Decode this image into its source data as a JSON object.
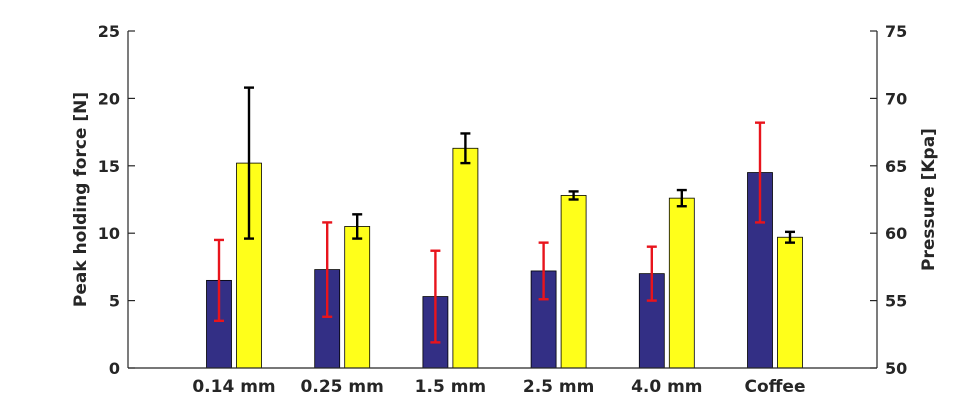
{
  "chart_data": {
    "type": "bar",
    "categories": [
      "0.14 mm",
      "0.25 mm",
      "1.5 mm",
      "2.5 mm",
      "4.0 mm",
      "Coffee"
    ],
    "series": [
      {
        "axis": "left",
        "color": "#332f85",
        "error_color": "#e8141c",
        "values": [
          6.5,
          7.3,
          5.3,
          7.2,
          7.0,
          14.5
        ],
        "errors": [
          3.0,
          3.5,
          3.4,
          2.1,
          2.0,
          3.7
        ]
      },
      {
        "axis": "right",
        "color": "#ffff1a",
        "error_color": "#000000",
        "values": [
          65.2,
          60.5,
          66.3,
          62.8,
          62.6,
          59.7
        ],
        "errors": [
          5.6,
          0.9,
          1.1,
          0.3,
          0.6,
          0.4
        ]
      }
    ],
    "ylabel": "Peak holding force [N]",
    "ylabel_right": "Pressure [Kpa]",
    "ylim": [
      0,
      25
    ],
    "ylim_right": [
      50,
      75
    ],
    "yticks": [
      "0",
      "5",
      "10",
      "15",
      "20",
      "25"
    ],
    "yticks_right": [
      "50",
      "55",
      "60",
      "65",
      "70",
      "75"
    ],
    "grid": false,
    "legend": "none"
  }
}
